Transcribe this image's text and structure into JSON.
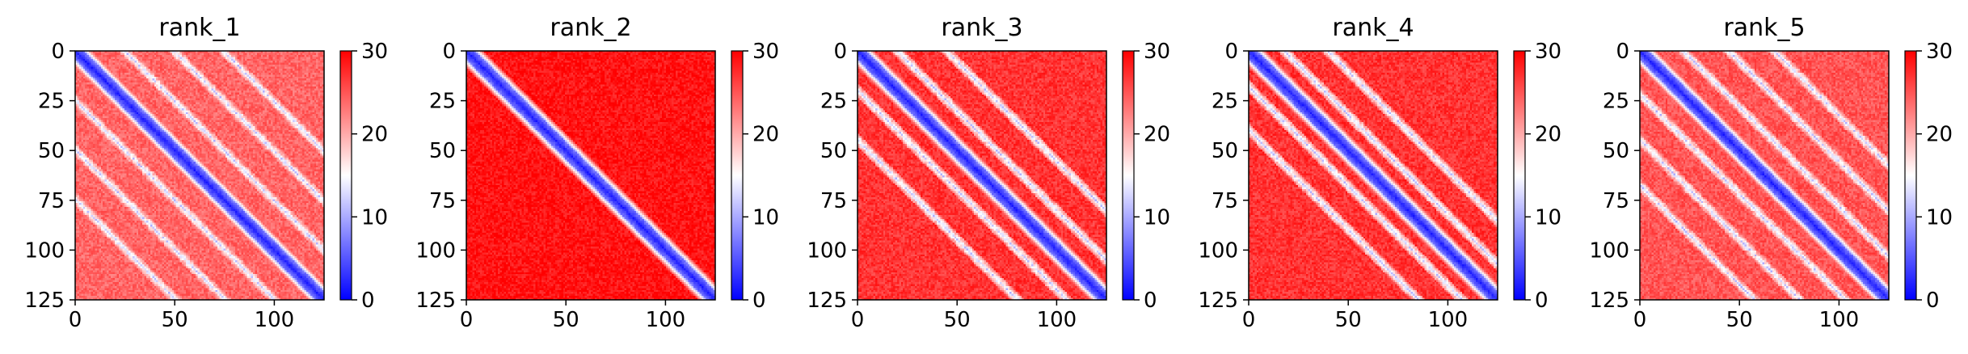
{
  "chart_data": [
    {
      "type": "heatmap",
      "title": "rank_1",
      "size": 126,
      "xlim": [
        0,
        125
      ],
      "ylim": [
        125,
        0
      ],
      "xticks": [
        "0",
        "50",
        "100"
      ],
      "yticks": [
        "0",
        "25",
        "50",
        "75",
        "100",
        "125"
      ],
      "colorbar": {
        "colormap": "bwr",
        "range": [
          0,
          30
        ],
        "ticks": [
          "0",
          "10",
          "20",
          "30"
        ]
      },
      "pattern": {
        "diagonal_band_width": 4,
        "off_diagonal_contacts": [
          25,
          50,
          75
        ],
        "background_level": 24
      }
    },
    {
      "type": "heatmap",
      "title": "rank_2",
      "size": 126,
      "xlim": [
        0,
        125
      ],
      "ylim": [
        125,
        0
      ],
      "xticks": [
        "0",
        "50",
        "100"
      ],
      "yticks": [
        "0",
        "25",
        "50",
        "75",
        "100",
        "125"
      ],
      "colorbar": {
        "colormap": "bwr",
        "range": [
          0,
          30
        ],
        "ticks": [
          "0",
          "10",
          "20",
          "30"
        ]
      },
      "pattern": {
        "diagonal_band_width": 4,
        "off_diagonal_contacts": [],
        "background_level": 29
      }
    },
    {
      "type": "heatmap",
      "title": "rank_3",
      "size": 126,
      "xlim": [
        0,
        125
      ],
      "ylim": [
        125,
        0
      ],
      "xticks": [
        "0",
        "50",
        "100"
      ],
      "yticks": [
        "0",
        "25",
        "50",
        "75",
        "100",
        "125"
      ],
      "colorbar": {
        "colormap": "bwr",
        "range": [
          0,
          30
        ],
        "ticks": [
          "0",
          "10",
          "20",
          "30"
        ]
      },
      "pattern": {
        "diagonal_band_width": 4,
        "off_diagonal_contacts": [
          20,
          45
        ],
        "background_level": 27
      }
    },
    {
      "type": "heatmap",
      "title": "rank_4",
      "size": 126,
      "xlim": [
        0,
        125
      ],
      "ylim": [
        125,
        0
      ],
      "xticks": [
        "0",
        "50",
        "100"
      ],
      "yticks": [
        "0",
        "25",
        "50",
        "75",
        "100",
        "125"
      ],
      "colorbar": {
        "colormap": "bwr",
        "range": [
          0,
          30
        ],
        "ticks": [
          "0",
          "10",
          "20",
          "30"
        ]
      },
      "pattern": {
        "diagonal_band_width": 4,
        "off_diagonal_contacts": [
          18,
          40
        ],
        "background_level": 27
      }
    },
    {
      "type": "heatmap",
      "title": "rank_5",
      "size": 126,
      "xlim": [
        0,
        125
      ],
      "ylim": [
        125,
        0
      ],
      "xticks": [
        "0",
        "50",
        "100"
      ],
      "yticks": [
        "0",
        "25",
        "50",
        "75",
        "100",
        "125"
      ],
      "colorbar": {
        "colormap": "bwr",
        "range": [
          0,
          30
        ],
        "ticks": [
          "0",
          "10",
          "20",
          "30"
        ]
      },
      "pattern": {
        "diagonal_band_width": 4,
        "off_diagonal_contacts": [
          22,
          45,
          68
        ],
        "background_level": 25
      }
    }
  ]
}
